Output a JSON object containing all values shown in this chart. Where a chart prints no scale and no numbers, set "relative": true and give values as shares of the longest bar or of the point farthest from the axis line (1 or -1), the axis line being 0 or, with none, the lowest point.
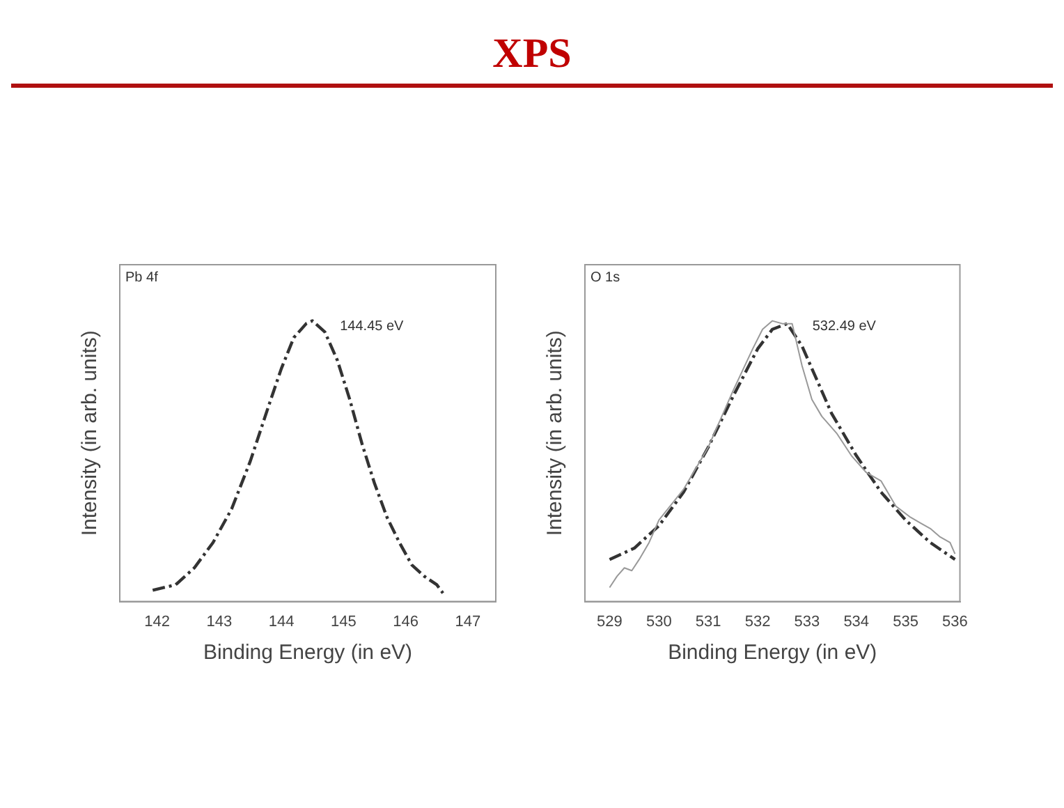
{
  "chart_data": [
    {
      "type": "line",
      "title": "XPS",
      "xlabel": "Binding Energy (in eV)",
      "ylabel": "Intensity (in arb. units)",
      "relative": true,
      "xlim": [
        141.4,
        147.45
      ],
      "xticks": [
        142,
        143,
        144,
        145,
        146,
        147
      ],
      "tick_labels": "x",
      "marker": "none",
      "annotations": [
        "Pb 4f",
        {
          "text": "144.45 eV",
          "x": 144.45,
          "y": 1
        }
      ],
      "series": [
        {
          "color": "#333333",
          "line_style": "dashed",
          "x": [
            141.93,
            142.3,
            142.6,
            142.9,
            143.2,
            143.5,
            143.8,
            144.0,
            144.2,
            144.4,
            144.5,
            144.7,
            144.9,
            145.1,
            145.3,
            145.5,
            145.7,
            145.9,
            146.1,
            146.3,
            146.5,
            146.6
          ],
          "values": [
            0.04,
            0.06,
            0.12,
            0.21,
            0.33,
            0.5,
            0.7,
            0.83,
            0.94,
            0.99,
            1.0,
            0.96,
            0.86,
            0.72,
            0.56,
            0.42,
            0.3,
            0.21,
            0.13,
            0.09,
            0.06,
            0.03
          ]
        }
      ]
    },
    {
      "type": "line",
      "xlabel": "Binding Energy (in eV)",
      "ylabel": "Intensity (in arb. units)",
      "relative": true,
      "xlim": [
        528.5,
        536.1
      ],
      "xticks": [
        529,
        530,
        531,
        532,
        533,
        534,
        535,
        536
      ],
      "tick_labels": "x",
      "marker": "none",
      "annotations": [
        "O 1s",
        {
          "text": "532.49 eV",
          "x": 532.49,
          "y": 1
        }
      ],
      "series": [
        {
          "color": "#999999",
          "line_style": "solid",
          "x": [
            529.0,
            529.15,
            529.3,
            529.45,
            529.6,
            529.8,
            530.0,
            530.5,
            531.0,
            531.5,
            531.9,
            532.1,
            532.3,
            532.5,
            532.7,
            532.9,
            533.1,
            533.3,
            533.6,
            533.9,
            534.2,
            534.5,
            534.8,
            535.1,
            535.3,
            535.5,
            535.7,
            535.9,
            536.0
          ],
          "values": [
            0.05,
            0.09,
            0.12,
            0.11,
            0.15,
            0.21,
            0.29,
            0.4,
            0.55,
            0.75,
            0.9,
            0.97,
            1.0,
            0.99,
            0.99,
            0.84,
            0.72,
            0.66,
            0.6,
            0.52,
            0.46,
            0.43,
            0.34,
            0.3,
            0.28,
            0.26,
            0.23,
            0.21,
            0.17
          ]
        },
        {
          "color": "#333333",
          "line_style": "dashed",
          "x": [
            529.0,
            529.5,
            530.0,
            530.5,
            531.0,
            531.5,
            532.0,
            532.3,
            532.6,
            532.9,
            533.2,
            533.5,
            534.0,
            534.5,
            535.0,
            535.5,
            536.0
          ],
          "values": [
            0.15,
            0.19,
            0.27,
            0.39,
            0.55,
            0.73,
            0.9,
            0.97,
            0.99,
            0.91,
            0.79,
            0.67,
            0.52,
            0.39,
            0.29,
            0.21,
            0.15
          ]
        }
      ]
    }
  ]
}
